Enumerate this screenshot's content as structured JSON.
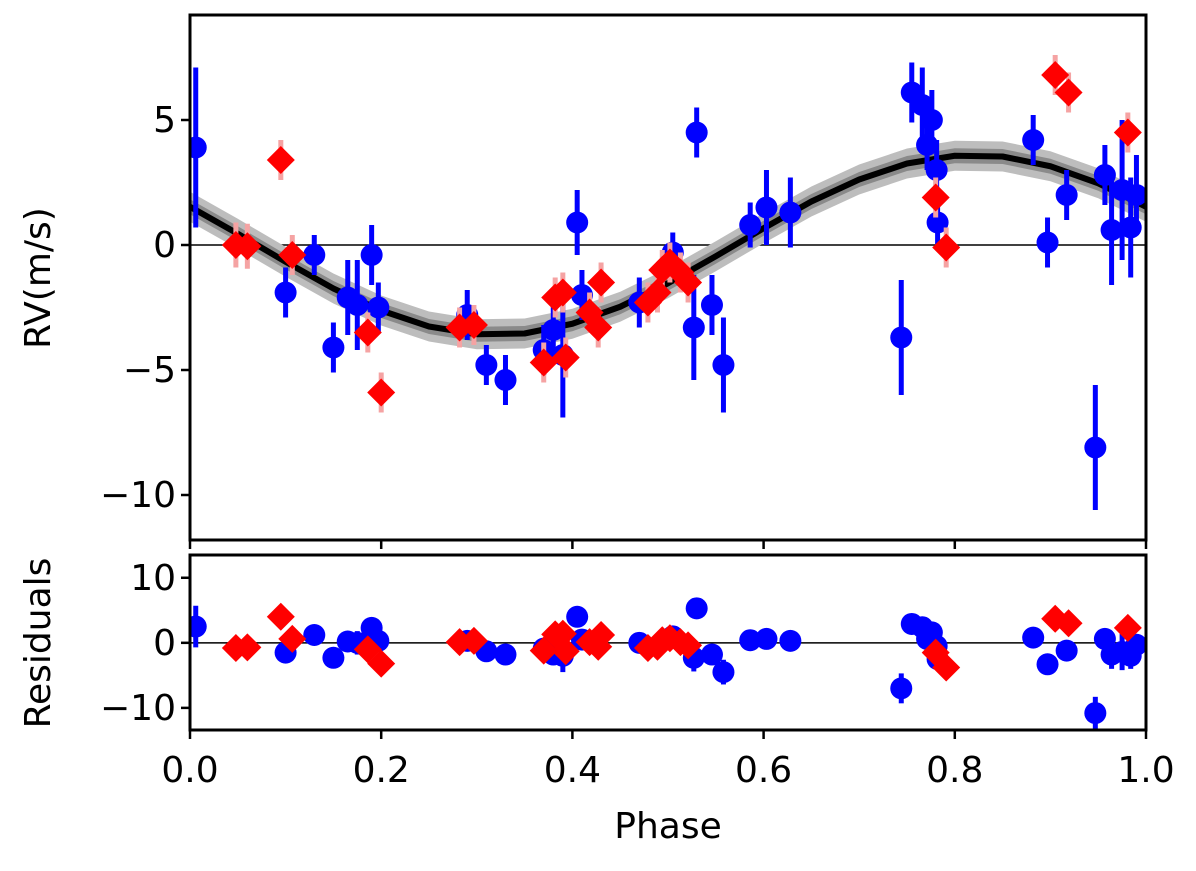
{
  "chart_data": {
    "type": "scatter",
    "xlabel": "Phase",
    "xlim": [
      0,
      1
    ],
    "xticks": [
      {
        "value": 0,
        "label": "0.0"
      },
      {
        "value": 0.2,
        "label": "0.2"
      },
      {
        "value": 0.4,
        "label": "0.4"
      },
      {
        "value": 0.6,
        "label": "0.6"
      },
      {
        "value": 0.8,
        "label": "0.8"
      },
      {
        "value": 1.0,
        "label": "1.0"
      }
    ],
    "ylabel": "RV(m/s)",
    "ylim": [
      -11.8,
      9.2
    ],
    "yticks": [
      {
        "value": -10,
        "label": "−10"
      },
      {
        "value": -5,
        "label": "−5"
      },
      0,
      5
    ],
    "residuals": {
      "ylabel": "Residuals",
      "ylim": [
        -13.4,
        13.5
      ],
      "yticks": [
        {
          "value": -10,
          "label": "−10"
        },
        0,
        10
      ]
    },
    "model": {
      "color": "#000000",
      "x": [
        0,
        0.05,
        0.1,
        0.15,
        0.2,
        0.25,
        0.3,
        0.35,
        0.4,
        0.45,
        0.5,
        0.55,
        0.6,
        0.65,
        0.7,
        0.75,
        0.8,
        0.85,
        0.9,
        0.95,
        1.0
      ],
      "values": [
        1.53,
        0.45,
        -0.67,
        -1.74,
        -2.62,
        -3.26,
        -3.57,
        -3.54,
        -3.15,
        -2.47,
        -1.53,
        -0.45,
        0.67,
        1.74,
        2.62,
        3.26,
        3.57,
        3.54,
        3.15,
        2.47,
        1.53
      ],
      "bands": [
        {
          "color": "#bdbdbd",
          "upper": [
            2.13,
            1.05,
            -0.07,
            -1.14,
            -2.02,
            -2.66,
            -2.97,
            -2.94,
            -2.55,
            -1.87,
            -0.93,
            0.15,
            1.27,
            2.34,
            3.22,
            3.86,
            4.17,
            4.14,
            3.75,
            3.07,
            2.13
          ],
          "lower": [
            0.93,
            -0.15,
            -1.27,
            -2.34,
            -3.22,
            -3.86,
            -4.17,
            -4.14,
            -3.75,
            -3.07,
            -2.13,
            -1.05,
            0.07,
            1.14,
            2.02,
            2.66,
            2.97,
            2.94,
            2.55,
            1.87,
            0.93
          ]
        },
        {
          "color": "#8a8a8a",
          "upper": [
            1.83,
            0.75,
            -0.37,
            -1.44,
            -2.32,
            -2.96,
            -3.27,
            -3.24,
            -2.85,
            -2.17,
            -1.23,
            -0.15,
            0.97,
            2.04,
            2.92,
            3.56,
            3.87,
            3.84,
            3.45,
            2.77,
            1.83
          ],
          "lower": [
            1.23,
            0.15,
            -0.97,
            -2.04,
            -2.92,
            -3.56,
            -3.87,
            -3.84,
            -3.45,
            -2.77,
            -1.83,
            -0.75,
            0.37,
            1.44,
            2.32,
            2.96,
            3.27,
            3.24,
            2.85,
            2.17,
            1.23
          ]
        }
      ]
    },
    "series": [
      {
        "color": "#0000ff",
        "error_color": "#0000ff",
        "marker": "circle",
        "x": [
          0.006,
          0.1,
          0.13,
          0.15,
          0.165,
          0.175,
          0.19,
          0.197,
          0.29,
          0.31,
          0.33,
          0.37,
          0.38,
          0.39,
          0.405,
          0.41,
          0.47,
          0.505,
          0.53,
          0.527,
          0.546,
          0.558,
          0.586,
          0.603,
          0.628,
          0.744,
          0.755,
          0.766,
          0.771,
          0.776,
          0.781,
          0.782,
          0.882,
          0.897,
          0.917,
          0.947,
          0.957,
          0.964,
          0.975,
          0.984,
          0.99
        ],
        "values": [
          3.9,
          -1.9,
          -0.4,
          -4.1,
          -2.1,
          -2.4,
          -0.4,
          -2.5,
          -2.8,
          -4.8,
          -5.4,
          -4.2,
          -3.4,
          -4.4,
          0.9,
          -2.0,
          -2.3,
          -0.3,
          4.5,
          -3.3,
          -2.4,
          -4.8,
          0.8,
          1.5,
          1.3,
          -3.7,
          6.1,
          5.6,
          4.0,
          5.0,
          3.0,
          0.9,
          4.2,
          0.1,
          2.0,
          -8.1,
          2.8,
          0.6,
          2.2,
          0.7,
          2.0
        ],
        "errors": [
          3.2,
          1.0,
          0.8,
          1.0,
          1.5,
          1.8,
          1.2,
          1.0,
          1.0,
          0.8,
          1.0,
          1.0,
          1.2,
          2.5,
          1.3,
          1.0,
          1.0,
          0.8,
          1.0,
          2.1,
          1.2,
          1.9,
          0.9,
          1.5,
          1.4,
          2.3,
          1.2,
          1.5,
          1.0,
          1.2,
          1.2,
          1.0,
          1.0,
          1.0,
          1.0,
          2.5,
          1.2,
          2.2,
          2.8,
          2.0,
          1.6
        ],
        "residuals": [
          2.5,
          -1.5,
          1.2,
          -2.3,
          0.2,
          0.0,
          2.3,
          0.3,
          0.3,
          -1.3,
          -1.8,
          -0.9,
          -1.8,
          -2.0,
          4.0,
          0.5,
          0.0,
          1.0,
          5.3,
          -2.3,
          -1.8,
          -4.5,
          0.4,
          0.6,
          0.3,
          -7.0,
          2.9,
          2.4,
          0.6,
          1.6,
          -0.5,
          -2.5,
          0.8,
          -3.3,
          -1.2,
          -10.8,
          0.6,
          -1.8,
          -1.4,
          -2.0,
          -0.3
        ]
      },
      {
        "color": "#ff0000",
        "error_color": "#f5a3a3",
        "marker": "diamond",
        "x": [
          0.048,
          0.06,
          0.095,
          0.107,
          0.186,
          0.2,
          0.282,
          0.297,
          0.37,
          0.382,
          0.39,
          0.393,
          0.418,
          0.427,
          0.43,
          0.479,
          0.489,
          0.494,
          0.502,
          0.513,
          0.521,
          0.78,
          0.791,
          0.905,
          0.919,
          0.981
        ],
        "values": [
          0.0,
          -0.05,
          3.4,
          -0.4,
          -3.5,
          -5.9,
          -3.3,
          -3.2,
          -4.7,
          -2.1,
          -1.9,
          -4.5,
          -2.7,
          -3.3,
          -1.5,
          -2.3,
          -1.9,
          -1.0,
          -0.7,
          -1.1,
          -1.5,
          1.9,
          -0.1,
          6.8,
          6.1,
          4.5
        ],
        "errors": [
          0.9,
          0.9,
          0.8,
          0.8,
          0.8,
          0.8,
          0.8,
          0.8,
          0.8,
          0.8,
          0.8,
          0.8,
          0.8,
          0.8,
          0.8,
          0.8,
          0.8,
          0.8,
          0.8,
          0.8,
          0.8,
          0.8,
          0.8,
          0.8,
          0.8,
          0.8
        ],
        "residuals": [
          -0.8,
          -0.7,
          4.0,
          0.6,
          -1.0,
          -3.2,
          0.1,
          0.3,
          -1.2,
          1.3,
          1.4,
          -1.3,
          0.1,
          -0.6,
          1.2,
          -0.8,
          -0.6,
          0.4,
          0.7,
          0.1,
          -0.4,
          -1.5,
          -3.8,
          3.7,
          3.0,
          2.3
        ]
      }
    ]
  }
}
